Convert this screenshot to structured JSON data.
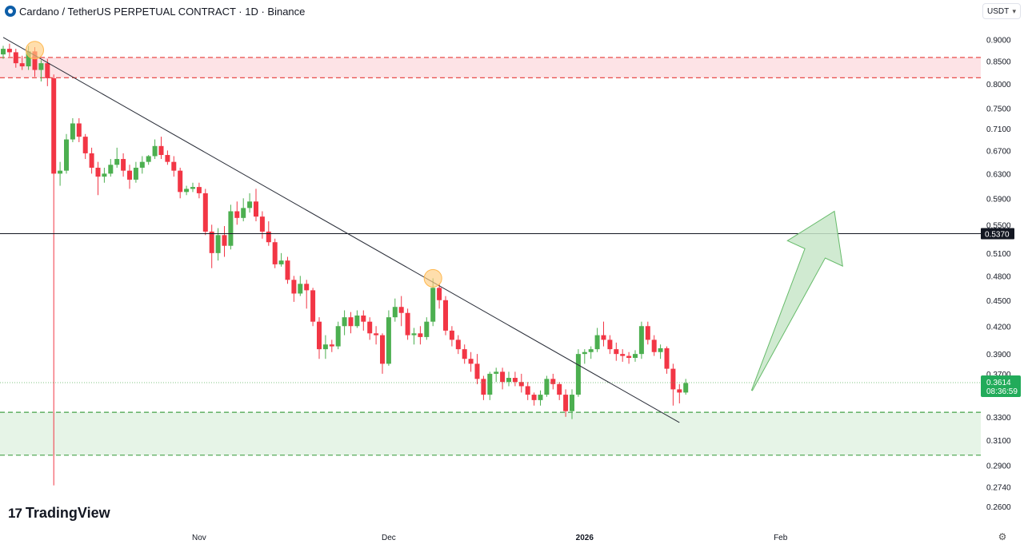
{
  "header": {
    "title": "Cardano / TetherUS PERPETUAL CONTRACT · 1D · Binance"
  },
  "currency_button": {
    "label": "USDT"
  },
  "branding": {
    "label": "TradingView"
  },
  "colors": {
    "up": "#4caf50",
    "down": "#f23645",
    "resistance_fill": "#fde3e6",
    "support_fill": "#e6f4e7",
    "arrow_fill": "#c8e6c9",
    "arrow_stroke": "#66bb6a"
  },
  "chart_data": {
    "type": "candlestick",
    "symbol": "Cardano / TetherUS PERPETUAL CONTRACT",
    "interval": "1D",
    "exchange": "Binance",
    "y_scale": "log",
    "ylim": [
      0.245,
      0.95
    ],
    "y_ticks": [
      "0.9000",
      "0.8500",
      "0.8000",
      "0.7500",
      "0.7100",
      "0.6700",
      "0.6300",
      "0.5900",
      "0.5500",
      "0.5100",
      "0.4800",
      "0.4500",
      "0.4200",
      "0.3900",
      "0.3700",
      "0.3300",
      "0.3100",
      "0.2900",
      "0.2740",
      "0.2600"
    ],
    "x_labels": [
      "Nov",
      "Dec",
      "2026",
      "Feb"
    ],
    "x_label_index": [
      31,
      61,
      92,
      123
    ],
    "resistance_zone": [
      0.813,
      0.858
    ],
    "support_zone": [
      0.298,
      0.334
    ],
    "horizontal_line": {
      "price": 0.537,
      "label": "0.5370"
    },
    "last_price": {
      "value": "0.3614",
      "countdown": "08:36:59"
    },
    "trendline": {
      "from": {
        "index": 0,
        "price": 0.905
      },
      "to": {
        "index": 107,
        "price": 0.325
      }
    },
    "touch_points": [
      {
        "index": 5,
        "price": 0.875
      },
      {
        "index": 68,
        "price": 0.477
      }
    ],
    "projection_arrow": {
      "from_price": 0.354,
      "to_price": 0.57
    },
    "candles": [
      [
        0.865,
        0.878,
        0.885,
        0.855
      ],
      [
        0.878,
        0.87,
        0.89,
        0.86
      ],
      [
        0.87,
        0.845,
        0.878,
        0.835
      ],
      [
        0.845,
        0.838,
        0.862,
        0.83
      ],
      [
        0.838,
        0.872,
        0.885,
        0.83
      ],
      [
        0.872,
        0.83,
        0.882,
        0.815
      ],
      [
        0.83,
        0.845,
        0.852,
        0.805
      ],
      [
        0.845,
        0.812,
        0.855,
        0.795
      ],
      [
        0.812,
        0.63,
        0.82,
        0.275
      ],
      [
        0.63,
        0.635,
        0.65,
        0.61
      ],
      [
        0.635,
        0.69,
        0.7,
        0.63
      ],
      [
        0.69,
        0.72,
        0.73,
        0.685
      ],
      [
        0.72,
        0.695,
        0.73,
        0.685
      ],
      [
        0.695,
        0.665,
        0.7,
        0.655
      ],
      [
        0.665,
        0.64,
        0.675,
        0.63
      ],
      [
        0.64,
        0.625,
        0.65,
        0.595
      ],
      [
        0.625,
        0.63,
        0.64,
        0.615
      ],
      [
        0.63,
        0.645,
        0.655,
        0.625
      ],
      [
        0.645,
        0.655,
        0.675,
        0.64
      ],
      [
        0.655,
        0.635,
        0.665,
        0.625
      ],
      [
        0.635,
        0.62,
        0.645,
        0.605
      ],
      [
        0.62,
        0.64,
        0.65,
        0.615
      ],
      [
        0.64,
        0.65,
        0.66,
        0.63
      ],
      [
        0.65,
        0.66,
        0.662,
        0.645
      ],
      [
        0.66,
        0.678,
        0.69,
        0.655
      ],
      [
        0.678,
        0.662,
        0.695,
        0.655
      ],
      [
        0.662,
        0.65,
        0.67,
        0.645
      ],
      [
        0.65,
        0.635,
        0.66,
        0.625
      ],
      [
        0.635,
        0.6,
        0.64,
        0.59
      ],
      [
        0.6,
        0.605,
        0.61,
        0.595
      ],
      [
        0.605,
        0.608,
        0.615,
        0.6
      ],
      [
        0.608,
        0.598,
        0.615,
        0.59
      ],
      [
        0.598,
        0.54,
        0.605,
        0.535
      ],
      [
        0.54,
        0.51,
        0.55,
        0.49
      ],
      [
        0.51,
        0.535,
        0.545,
        0.5
      ],
      [
        0.535,
        0.52,
        0.548,
        0.505
      ],
      [
        0.52,
        0.57,
        0.58,
        0.515
      ],
      [
        0.57,
        0.56,
        0.585,
        0.55
      ],
      [
        0.56,
        0.575,
        0.59,
        0.555
      ],
      [
        0.575,
        0.585,
        0.598,
        0.568
      ],
      [
        0.585,
        0.562,
        0.605,
        0.555
      ],
      [
        0.562,
        0.54,
        0.57,
        0.53
      ],
      [
        0.54,
        0.525,
        0.555,
        0.52
      ],
      [
        0.525,
        0.495,
        0.53,
        0.49
      ],
      [
        0.495,
        0.5,
        0.51,
        0.492
      ],
      [
        0.5,
        0.475,
        0.505,
        0.47
      ],
      [
        0.475,
        0.458,
        0.48,
        0.448
      ],
      [
        0.458,
        0.47,
        0.48,
        0.455
      ],
      [
        0.47,
        0.462,
        0.475,
        0.44
      ],
      [
        0.462,
        0.425,
        0.465,
        0.42
      ],
      [
        0.425,
        0.395,
        0.43,
        0.385
      ],
      [
        0.395,
        0.4,
        0.41,
        0.385
      ],
      [
        0.4,
        0.398,
        0.405,
        0.392
      ],
      [
        0.398,
        0.42,
        0.425,
        0.395
      ],
      [
        0.42,
        0.43,
        0.438,
        0.41
      ],
      [
        0.43,
        0.42,
        0.436,
        0.412
      ],
      [
        0.42,
        0.432,
        0.438,
        0.418
      ],
      [
        0.432,
        0.425,
        0.438,
        0.415
      ],
      [
        0.425,
        0.412,
        0.43,
        0.405
      ],
      [
        0.412,
        0.41,
        0.42,
        0.4
      ],
      [
        0.41,
        0.38,
        0.412,
        0.37
      ],
      [
        0.38,
        0.43,
        0.438,
        0.378
      ],
      [
        0.43,
        0.442,
        0.452,
        0.425
      ],
      [
        0.442,
        0.435,
        0.455,
        0.42
      ],
      [
        0.435,
        0.41,
        0.44,
        0.405
      ],
      [
        0.41,
        0.412,
        0.418,
        0.4
      ],
      [
        0.412,
        0.408,
        0.42,
        0.4
      ],
      [
        0.408,
        0.425,
        0.43,
        0.405
      ],
      [
        0.425,
        0.465,
        0.477,
        0.42
      ],
      [
        0.465,
        0.45,
        0.47,
        0.44
      ],
      [
        0.45,
        0.415,
        0.455,
        0.41
      ],
      [
        0.415,
        0.405,
        0.42,
        0.398
      ],
      [
        0.405,
        0.395,
        0.41,
        0.39
      ],
      [
        0.395,
        0.385,
        0.4,
        0.38
      ],
      [
        0.385,
        0.38,
        0.392,
        0.372
      ],
      [
        0.38,
        0.365,
        0.39,
        0.36
      ],
      [
        0.365,
        0.35,
        0.368,
        0.345
      ],
      [
        0.35,
        0.37,
        0.372,
        0.345
      ],
      [
        0.37,
        0.372,
        0.376,
        0.362
      ],
      [
        0.372,
        0.362,
        0.376,
        0.355
      ],
      [
        0.362,
        0.366,
        0.372,
        0.358
      ],
      [
        0.366,
        0.362,
        0.372,
        0.358
      ],
      [
        0.362,
        0.358,
        0.37,
        0.352
      ],
      [
        0.358,
        0.35,
        0.362,
        0.345
      ],
      [
        0.35,
        0.345,
        0.352,
        0.34
      ],
      [
        0.345,
        0.35,
        0.354,
        0.34
      ],
      [
        0.35,
        0.365,
        0.368,
        0.348
      ],
      [
        0.365,
        0.36,
        0.37,
        0.355
      ],
      [
        0.36,
        0.35,
        0.362,
        0.345
      ],
      [
        0.35,
        0.335,
        0.355,
        0.33
      ],
      [
        0.335,
        0.35,
        0.355,
        0.328
      ],
      [
        0.35,
        0.39,
        0.395,
        0.348
      ],
      [
        0.39,
        0.392,
        0.395,
        0.38
      ],
      [
        0.392,
        0.395,
        0.398,
        0.385
      ],
      [
        0.395,
        0.41,
        0.418,
        0.392
      ],
      [
        0.41,
        0.405,
        0.425,
        0.398
      ],
      [
        0.405,
        0.395,
        0.41,
        0.39
      ],
      [
        0.395,
        0.39,
        0.402,
        0.383
      ],
      [
        0.39,
        0.388,
        0.395,
        0.382
      ],
      [
        0.388,
        0.386,
        0.392,
        0.38
      ],
      [
        0.386,
        0.39,
        0.394,
        0.382
      ],
      [
        0.39,
        0.42,
        0.425,
        0.385
      ],
      [
        0.42,
        0.405,
        0.425,
        0.4
      ],
      [
        0.405,
        0.392,
        0.41,
        0.388
      ],
      [
        0.392,
        0.396,
        0.4,
        0.385
      ],
      [
        0.396,
        0.375,
        0.398,
        0.37
      ],
      [
        0.375,
        0.355,
        0.38,
        0.34
      ],
      [
        0.355,
        0.352,
        0.36,
        0.342
      ],
      [
        0.352,
        0.361,
        0.365,
        0.35
      ]
    ]
  }
}
